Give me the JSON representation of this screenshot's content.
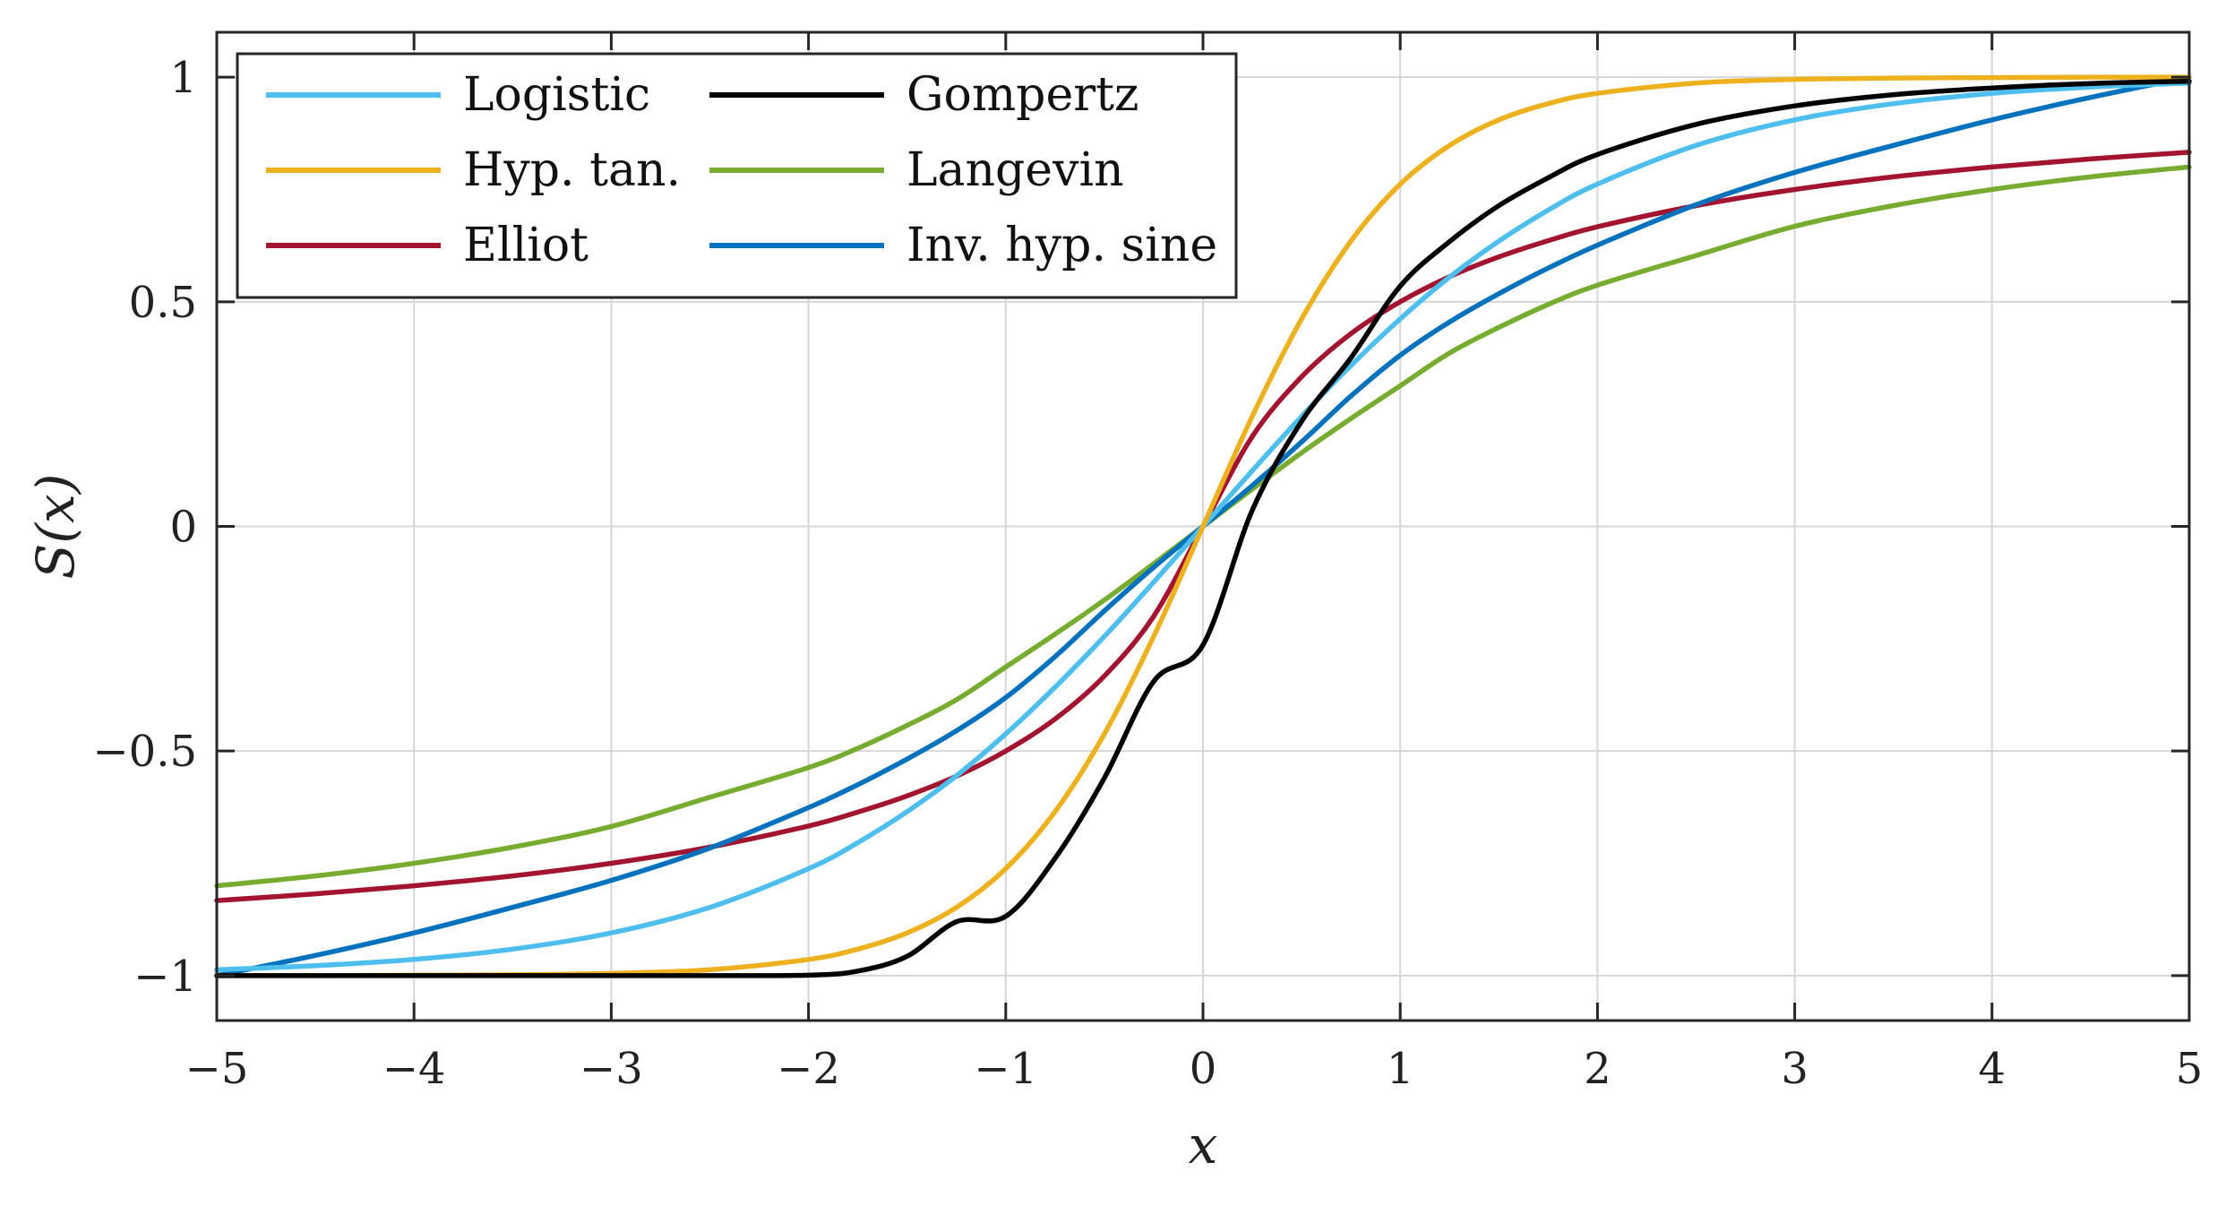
{
  "chart_data": {
    "type": "line",
    "title": "",
    "xlabel": "x",
    "ylabel": "S(x)",
    "xlim": [
      -5,
      5
    ],
    "ylim": [
      -1.1,
      1.1
    ],
    "grid": true,
    "legend_position": "top-left",
    "legend_columns": 2,
    "x_ticks": [
      -5,
      -4,
      -3,
      -2,
      -1,
      0,
      1,
      2,
      3,
      4,
      5
    ],
    "x_tick_labels": [
      "−5",
      "−4",
      "−3",
      "−2",
      "−1",
      "0",
      "1",
      "2",
      "3",
      "4",
      "5"
    ],
    "y_ticks": [
      -1,
      -0.5,
      0,
      0.5,
      1
    ],
    "y_tick_labels": [
      "−1",
      "−0.5",
      "0",
      "0.5",
      "1"
    ],
    "x": [
      -5,
      -4.5,
      -4,
      -3.5,
      -3,
      -2.5,
      -2,
      -1.75,
      -1.5,
      -1.25,
      -1,
      -0.75,
      -0.5,
      -0.25,
      0,
      0.25,
      0.5,
      0.75,
      1,
      1.25,
      1.5,
      1.75,
      2,
      2.5,
      3,
      3.5,
      4,
      4.5,
      5
    ],
    "series": [
      {
        "name": "Logistic",
        "color": "#4DBEEE",
        "values": [
          -0.987,
          -0.978,
          -0.964,
          -0.941,
          -0.905,
          -0.848,
          -0.762,
          -0.704,
          -0.635,
          -0.555,
          -0.462,
          -0.358,
          -0.245,
          -0.124,
          0.0,
          0.124,
          0.245,
          0.358,
          0.462,
          0.555,
          0.635,
          0.704,
          0.762,
          0.848,
          0.905,
          0.941,
          0.964,
          0.978,
          0.987
        ]
      },
      {
        "name": "Hyp. tan.",
        "color": "#EDB120",
        "values": [
          -1.0,
          -1.0,
          -0.999,
          -0.998,
          -0.995,
          -0.987,
          -0.964,
          -0.941,
          -0.905,
          -0.848,
          -0.762,
          -0.635,
          -0.462,
          -0.245,
          0.0,
          0.245,
          0.462,
          0.635,
          0.762,
          0.848,
          0.905,
          0.941,
          0.964,
          0.987,
          0.995,
          0.998,
          0.999,
          1.0,
          1.0
        ]
      },
      {
        "name": "Elliot",
        "color": "#A2142F",
        "values": [
          -0.833,
          -0.818,
          -0.8,
          -0.778,
          -0.75,
          -0.714,
          -0.667,
          -0.636,
          -0.6,
          -0.556,
          -0.5,
          -0.429,
          -0.333,
          -0.2,
          0.0,
          0.2,
          0.333,
          0.429,
          0.5,
          0.556,
          0.6,
          0.636,
          0.667,
          0.714,
          0.75,
          0.778,
          0.8,
          0.818,
          0.833
        ]
      },
      {
        "name": "Gompertz",
        "color": "#000000",
        "values": [
          -1.0,
          -1.0,
          -1.0,
          -1.0,
          -1.0,
          -1.0,
          -0.999,
          -0.99,
          -0.957,
          -0.88,
          -0.868,
          -0.739,
          -0.56,
          -0.345,
          -0.264,
          0.036,
          0.234,
          0.375,
          0.535,
          0.634,
          0.714,
          0.776,
          0.828,
          0.895,
          0.936,
          0.961,
          0.976,
          0.986,
          0.991
        ]
      },
      {
        "name": "Langevin",
        "color": "#77AC30",
        "values": [
          -0.8,
          -0.778,
          -0.75,
          -0.714,
          -0.668,
          -0.603,
          -0.537,
          -0.494,
          -0.443,
          -0.386,
          -0.313,
          -0.24,
          -0.164,
          -0.083,
          0.0,
          0.083,
          0.164,
          0.24,
          0.313,
          0.386,
          0.443,
          0.494,
          0.537,
          0.603,
          0.668,
          0.714,
          0.75,
          0.778,
          0.8
        ]
      },
      {
        "name": "Inv. hyp. sine",
        "color": "#0072BD",
        "values": [
          -1.0,
          -0.955,
          -0.905,
          -0.848,
          -0.788,
          -0.716,
          -0.626,
          -0.575,
          -0.518,
          -0.455,
          -0.381,
          -0.29,
          -0.188,
          -0.091,
          0.0,
          0.091,
          0.188,
          0.29,
          0.381,
          0.455,
          0.518,
          0.575,
          0.626,
          0.716,
          0.788,
          0.848,
          0.905,
          0.955,
          1.0
        ]
      }
    ]
  }
}
